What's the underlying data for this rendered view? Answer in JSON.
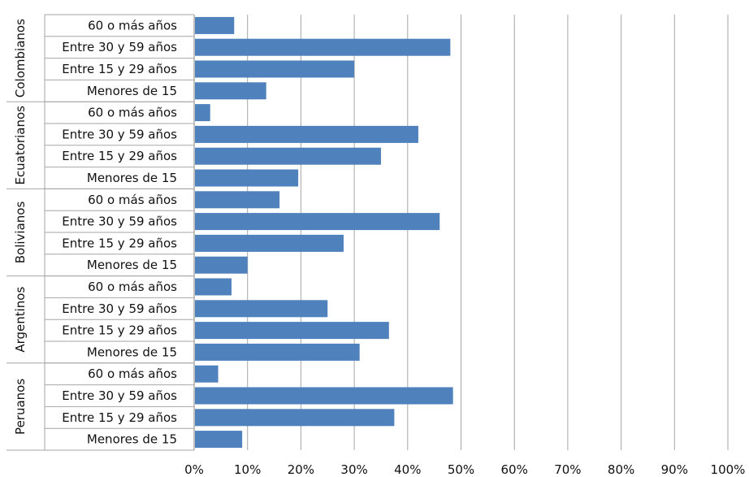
{
  "chart_data": {
    "type": "bar",
    "orientation": "horizontal",
    "title": "",
    "xlabel": "",
    "ylabel": "",
    "xlim": [
      0,
      100
    ],
    "x_tick_labels": [
      "0%",
      "10%",
      "20%",
      "30%",
      "40%",
      "50%",
      "60%",
      "70%",
      "80%",
      "90%",
      "100%"
    ],
    "grid": "vertical",
    "legend": "none",
    "bar_color": "#4f81bd",
    "groups": [
      {
        "name": "Colombianos",
        "categories": [
          "60 o más años",
          "Entre 30 y 59 años",
          "Entre 15 y 29 años",
          "Menores de 15"
        ],
        "values": [
          7.5,
          48,
          30,
          13.5
        ]
      },
      {
        "name": "Ecuatorianos",
        "categories": [
          "60 o más años",
          "Entre 30 y 59 años",
          "Entre 15 y 29 años",
          "Menores de 15"
        ],
        "values": [
          3,
          42,
          35,
          19.5
        ]
      },
      {
        "name": "Bolivianos",
        "categories": [
          "60 o más años",
          "Entre 30 y 59 años",
          "Entre 15 y 29 años",
          "Menores de 15"
        ],
        "values": [
          16,
          46,
          28,
          10
        ]
      },
      {
        "name": "Argentinos",
        "categories": [
          "60 o más años",
          "Entre 30 y 59 años",
          "Entre 15 y 29 años",
          "Menores de 15"
        ],
        "values": [
          7,
          25,
          36.5,
          31
        ]
      },
      {
        "name": "Peruanos",
        "categories": [
          "60 o más años",
          "Entre 30 y 59 años",
          "Entre 15 y 29 años",
          "Menores de 15"
        ],
        "values": [
          4.5,
          48.5,
          37.5,
          9
        ]
      }
    ]
  }
}
